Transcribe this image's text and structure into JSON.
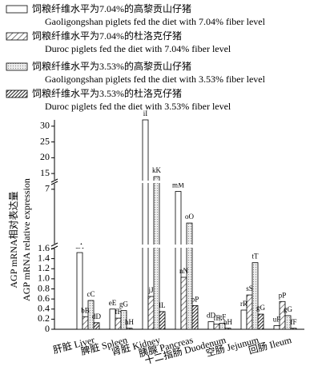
{
  "chart_data": {
    "type": "bar",
    "ylabel": [
      "AGP mRNA相对表达量",
      "AGP mRNA relative expression"
    ],
    "categories": [
      "肝脏 Liver",
      "脾脏 Spleen",
      "肾脏 Kidney",
      "胰腺 Pancreas",
      "十二指肠 Duodenum",
      "空肠 Jejunum",
      "回肠 Ileum"
    ],
    "series": [
      {
        "name": "饲粮纤维水平为7.04%的高黎贡山仔猪",
        "subname": "Gaoligongshan piglets fed the diet with 7.04% fiber level",
        "color": "#ffffff",
        "values": [
          1.52,
          0.4,
          32,
          6.8,
          0.15,
          0.38,
          0.07
        ],
        "value_labels": [
          "aA",
          "eE",
          "iI",
          "mM",
          "dD",
          "rR",
          "uF"
        ]
      },
      {
        "name": "饲粮纤维水平为7.04%的杜洛克仔猪",
        "subname": "Duroc piglets fed the diet with 7.04% fiber level",
        "color": "#999999",
        "values": [
          0.25,
          0.22,
          0.65,
          1.03,
          0.1,
          0.68,
          0.55
        ],
        "value_labels": [
          "bB",
          "fF",
          "jJ",
          "nN",
          "fF",
          "sS",
          "pP"
        ]
      },
      {
        "name": "饲粮纤维水平为3.53%的高黎贡山仔猪",
        "subname": "Gaoligongshan piglets fed the diet with 3.53% fiber level",
        "color": "#dddddd",
        "values": [
          0.57,
          0.37,
          14,
          3.9,
          0.12,
          1.32,
          0.27
        ],
        "value_labels": [
          "cC",
          "gG",
          "kK",
          "oO",
          "gF",
          "tT",
          "gG"
        ]
      },
      {
        "name": "饲粮纤维水平为3.53%的杜洛克仔猪",
        "subname": "Duroc piglets fed the diet with 3.53% fiber level",
        "color": "#333333",
        "values": [
          0.13,
          0.02,
          0.35,
          0.47,
          0.02,
          0.3,
          0.02
        ],
        "value_labels": [
          "dD",
          "hH",
          "lL",
          "pP",
          "hH",
          "gG",
          "fF"
        ]
      }
    ],
    "y_segments": [
      {
        "ylim": [
          0,
          1.6
        ],
        "yticks": [
          0,
          0.2,
          0.4,
          0.6,
          0.8,
          {
            "value": 1,
            "label": "1.0"
          },
          1.2,
          1.4,
          1.6
        ]
      },
      {
        "ylim": [
          2,
          7.5
        ],
        "yticks": [
          7
        ]
      },
      {
        "ylim": [
          13,
          32
        ],
        "yticks": [
          15,
          20,
          25,
          30
        ]
      }
    ]
  }
}
